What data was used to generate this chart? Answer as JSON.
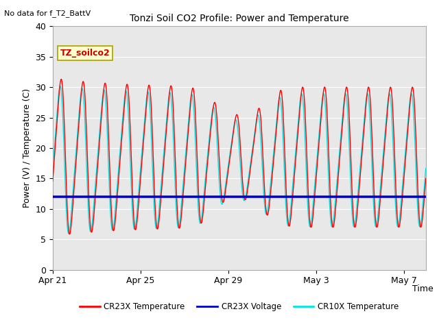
{
  "title": "Tonzi Soil CO2 Profile: Power and Temperature",
  "subtitle": "No data for f_T2_BattV",
  "ylabel": "Power (V) / Temperature (C)",
  "xlabel": "Time",
  "ylim": [
    0,
    40
  ],
  "xlim_start": 0,
  "xlim_end": 17,
  "xtick_positions": [
    0,
    4,
    8,
    12,
    16
  ],
  "xtick_labels": [
    "Apr 21",
    "Apr 25",
    "Apr 29",
    "May 3",
    "May 7"
  ],
  "ytick_positions": [
    0,
    5,
    10,
    15,
    20,
    25,
    30,
    35,
    40
  ],
  "fig_bg_color": "#ffffff",
  "plot_bg_color": "#e8e8e8",
  "voltage_value": 12.0,
  "cr23x_color": "#ff0000",
  "cr10x_color": "#00e5e5",
  "voltage_color": "#0000cc",
  "legend_label_cr23x": "CR23X Temperature",
  "legend_label_voltage": "CR23X Voltage",
  "legend_label_cr10x": "CR10X Temperature",
  "watermark_text": "TZ_soilco2",
  "grid_color": "#ffffff"
}
